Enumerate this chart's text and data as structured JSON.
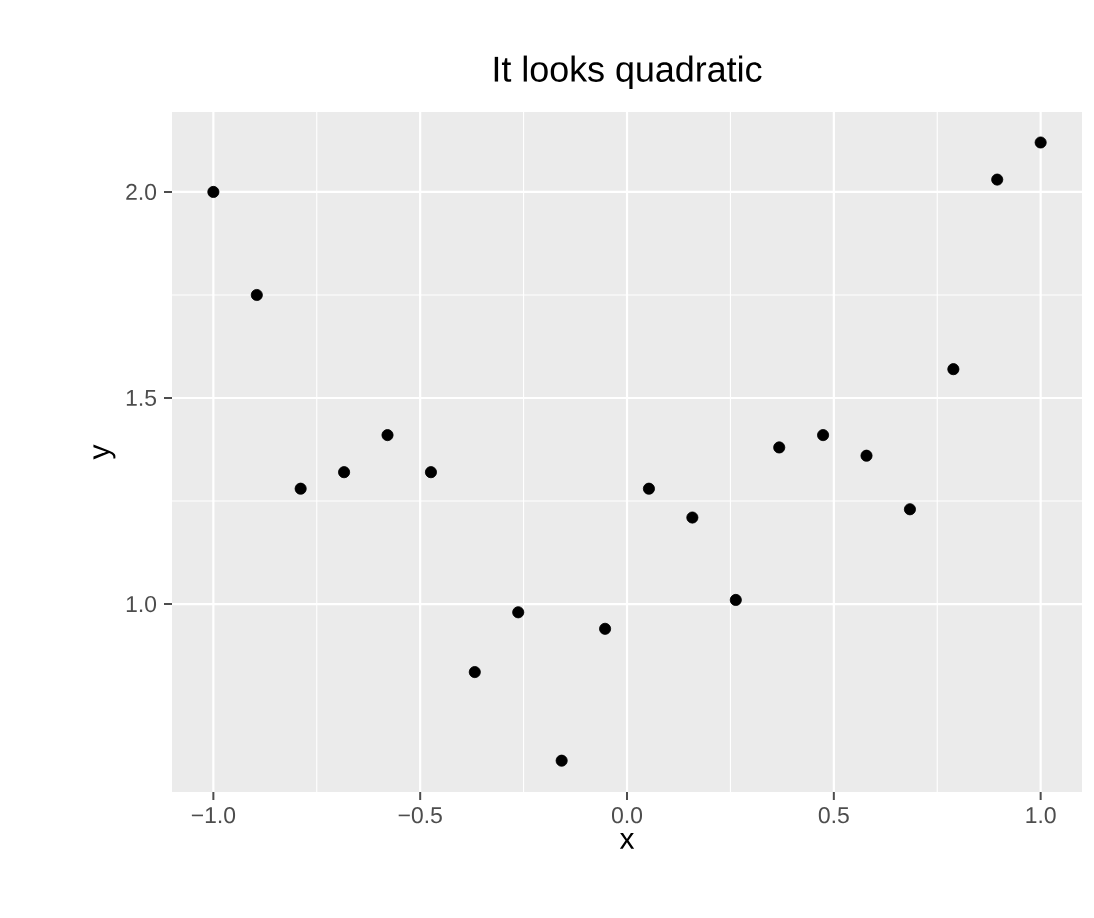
{
  "chart_data": {
    "type": "scatter",
    "title": "It looks quadratic",
    "xlabel": "x",
    "ylabel": "y",
    "x": [
      -1,
      -0.895,
      -0.789,
      -0.684,
      -0.579,
      -0.474,
      -0.368,
      -0.263,
      -0.158,
      -0.053,
      0.053,
      0.158,
      0.263,
      0.368,
      0.474,
      0.579,
      0.684,
      0.789,
      0.895,
      1
    ],
    "series": [
      {
        "color": "#000000",
        "values": [
          2.0,
          1.75,
          1.28,
          1.32,
          1.41,
          1.32,
          0.835,
          0.98,
          0.62,
          0.94,
          1.28,
          1.21,
          1.01,
          1.38,
          1.41,
          1.36,
          1.23,
          1.57,
          2.03,
          2.12
        ]
      }
    ],
    "xlim": [
      -1.1,
      1.1
    ],
    "ylim": [
      0.544,
      2.194
    ],
    "xticks": [
      {
        "value": -1,
        "label": "−1.0"
      },
      {
        "value": -0.5,
        "label": "−0.5"
      },
      {
        "value": 0,
        "label": "0.0"
      },
      {
        "value": 0.5,
        "label": "0.5"
      },
      {
        "value": 1,
        "label": "1.0"
      }
    ],
    "yticks": [
      {
        "value": 1,
        "label": "1.0"
      },
      {
        "value": 1.5,
        "label": "1.5"
      },
      {
        "value": 2,
        "label": "2.0"
      }
    ],
    "grid": true,
    "marker": "circle"
  }
}
